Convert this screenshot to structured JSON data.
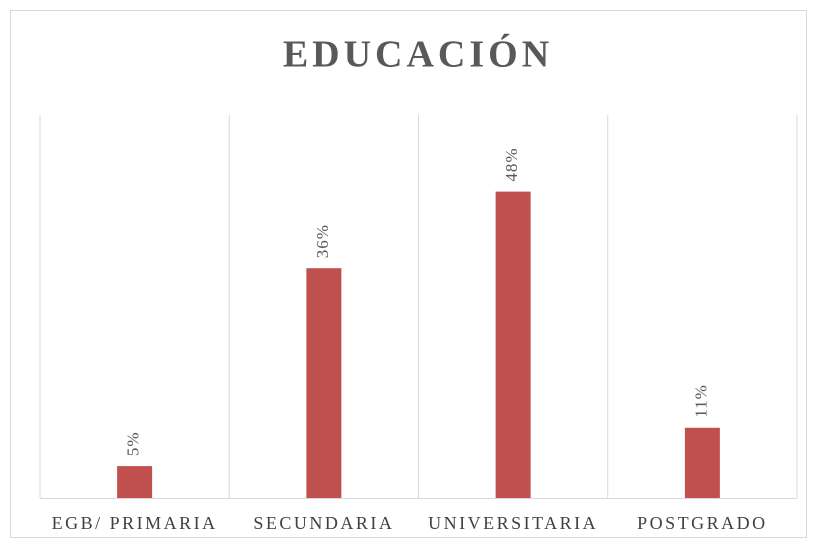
{
  "chart_data": {
    "type": "bar",
    "title": "EDUCACIÓN",
    "categories": [
      "EGB/ PRIMARIA",
      "SECUNDARIA",
      "UNIVERSITARIA",
      "POSTGRADO"
    ],
    "values": [
      5,
      36,
      48,
      11
    ],
    "value_labels": [
      "5%",
      "36%",
      "48%",
      "11%"
    ],
    "color": "#c0504d",
    "ylim": [
      0,
      60
    ]
  }
}
